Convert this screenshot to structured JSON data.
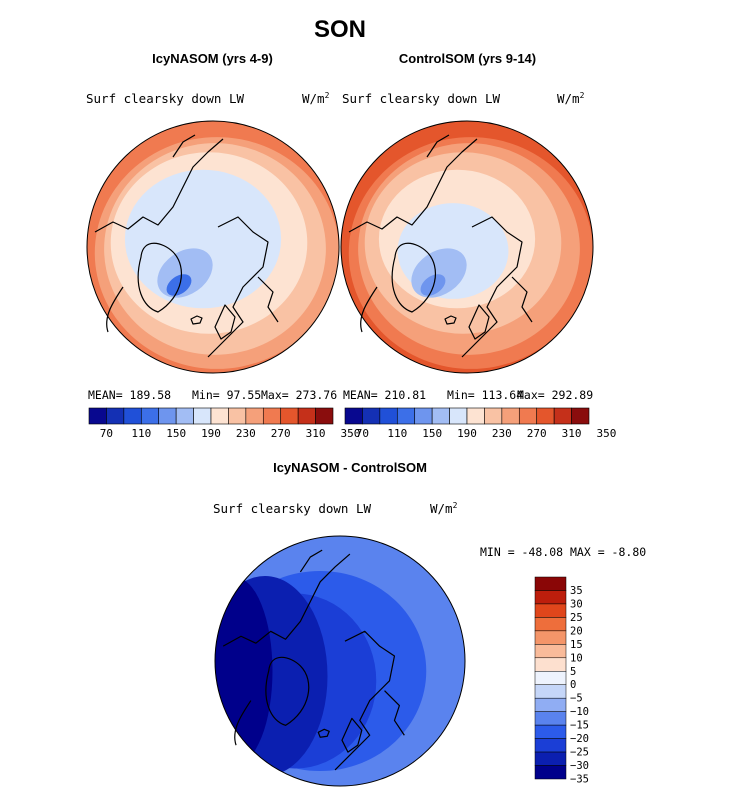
{
  "page": {
    "title": "SON"
  },
  "panels": [
    {
      "id": "icy",
      "title": "IcyNASOM (yrs 4-9)",
      "variable": "Surf clearsky down LW",
      "units_base": "W/m",
      "units_exp": "2",
      "stats": {
        "mean": "MEAN= 189.58",
        "min": "Min=  97.55",
        "max": "Max= 273.76"
      }
    },
    {
      "id": "ctl",
      "title": "ControlSOM (yrs 9-14)",
      "variable": "Surf clearsky down LW",
      "units_base": "W/m",
      "units_exp": "2",
      "stats": {
        "mean": "MEAN= 210.81",
        "min": "Min= 113.64",
        "max": "Max= 292.89"
      }
    }
  ],
  "diff": {
    "title": "IcyNASOM - ControlSOM",
    "variable": "Surf clearsky down LW",
    "units_base": "W/m",
    "units_exp": "2",
    "minmax": "MIN = -48.08 MAX =  -8.80"
  },
  "colors": {
    "abs": [
      "#08088f",
      "#1430b4",
      "#2050d8",
      "#3c6fe8",
      "#6e95ee",
      "#a2bdf4",
      "#d8e6fb",
      "#fde3d2",
      "#f9c2a4",
      "#f5a07a",
      "#f07a50",
      "#e4562c",
      "#c5301a",
      "#8a0d0d"
    ],
    "diff": [
      "#00008b",
      "#0b1fb0",
      "#1b3ed6",
      "#2c5bea",
      "#5a83ee",
      "#90adf3",
      "#c5d6f8",
      "#eef3fd",
      "#fde0cf",
      "#f9bb9a",
      "#f49569",
      "#ee6e3b",
      "#e0461b",
      "#bd1e0c",
      "#8a0606"
    ]
  },
  "chart_data": [
    {
      "type": "heatmap",
      "title": "IcyNASOM (yrs 4-9)",
      "variable": "Surf clearsky down LW",
      "units": "W/m2",
      "projection": "north polar stereographic",
      "colorbar_ticks": [
        "70",
        "110",
        "150",
        "190",
        "230",
        "270",
        "310",
        "350"
      ],
      "colorbar_levels": [
        50,
        70,
        90,
        110,
        130,
        150,
        170,
        190,
        210,
        230,
        250,
        270,
        290,
        310,
        330,
        350
      ],
      "mean": 189.58,
      "min": 97.55,
      "max": 273.76,
      "field": "field_icy"
    },
    {
      "type": "heatmap",
      "title": "ControlSOM (yrs 9-14)",
      "variable": "Surf clearsky down LW",
      "units": "W/m2",
      "projection": "north polar stereographic",
      "colorbar_ticks": [
        "70",
        "110",
        "150",
        "190",
        "230",
        "270",
        "310",
        "350"
      ],
      "colorbar_levels": [
        50,
        70,
        90,
        110,
        130,
        150,
        170,
        190,
        210,
        230,
        250,
        270,
        290,
        310,
        330,
        350
      ],
      "mean": 210.81,
      "min": 113.64,
      "max": 292.89,
      "field": "field_ctl"
    },
    {
      "type": "heatmap",
      "title": "IcyNASOM - ControlSOM",
      "variable": "Surf clearsky down LW",
      "units": "W/m2",
      "projection": "north polar stereographic",
      "colorbar_ticks": [
        "35",
        "30",
        "25",
        "20",
        "15",
        "10",
        "5",
        "0",
        "−5",
        "−10",
        "−15",
        "−20",
        "−25",
        "−30",
        "−35"
      ],
      "min": -48.08,
      "max": -8.8,
      "field": "field_diff"
    }
  ],
  "field_icy": [
    {
      "v": 250
    },
    {
      "v": 238
    },
    {
      "v": 222
    },
    {
      "v": 202
    },
    {
      "v": 182
    },
    {
      "v": 170
    },
    {
      "v": 150
    },
    {
      "v": 125
    }
  ],
  "field_ctl": [
    {
      "v": 272
    },
    {
      "v": 250
    },
    {
      "v": 232
    },
    {
      "v": 212
    },
    {
      "v": 196
    },
    {
      "v": 182
    },
    {
      "v": 162
    },
    {
      "v": 140
    }
  ],
  "field_diff": [
    {
      "v": -18
    },
    {
      "v": -23
    },
    {
      "v": -28
    },
    {
      "v": -33
    },
    {
      "v": -38
    },
    {
      "v": -45
    }
  ]
}
